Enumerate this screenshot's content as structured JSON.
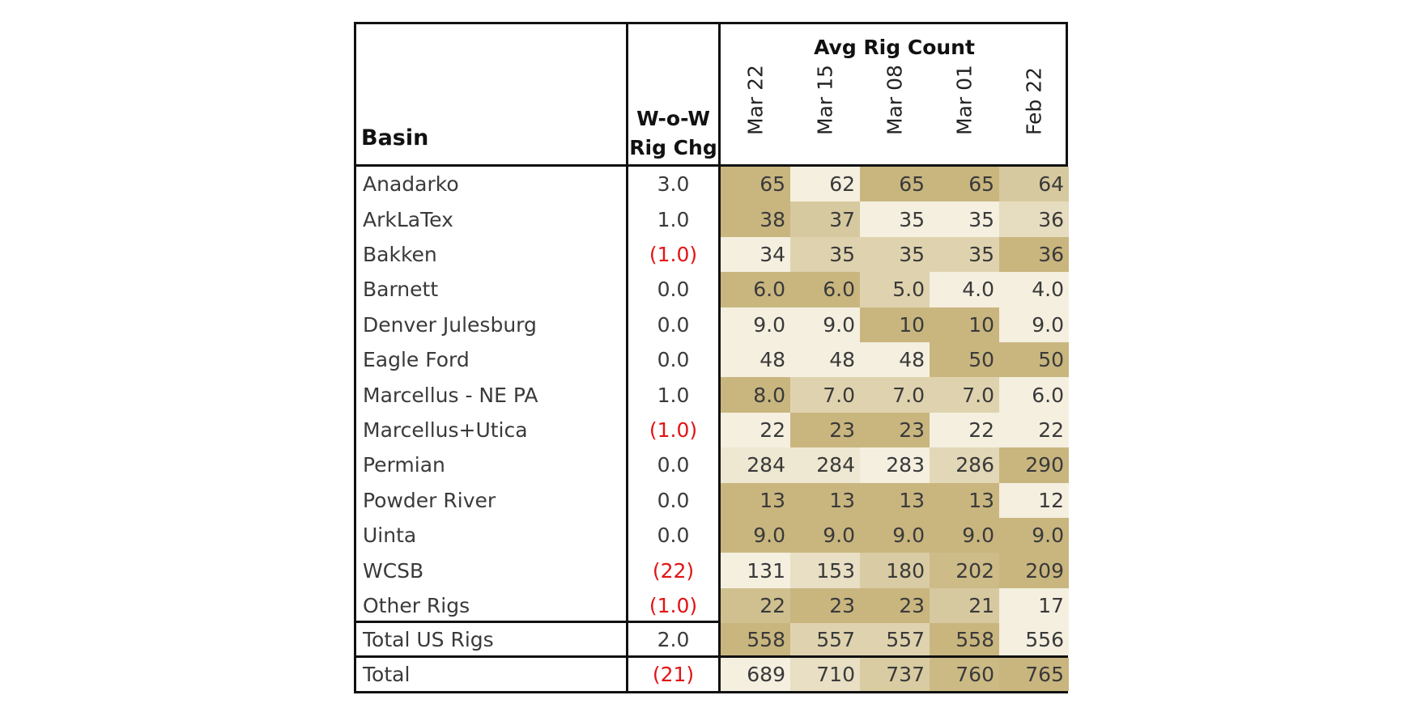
{
  "table": {
    "header": {
      "basin": "Basin",
      "chg_line1": "W-o-W",
      "chg_line2": "Rig Chg",
      "group": "Avg Rig Count",
      "dates": [
        "Mar 22",
        "Mar 15",
        "Mar 08",
        "Mar 01",
        "Feb 22"
      ]
    },
    "rows": [
      {
        "basin": "Anadarko",
        "chg": "3.0",
        "neg": false,
        "values": [
          "65",
          "62",
          "65",
          "65",
          "64"
        ]
      },
      {
        "basin": "ArkLaTex",
        "chg": "1.0",
        "neg": false,
        "values": [
          "38",
          "37",
          "35",
          "35",
          "36"
        ]
      },
      {
        "basin": "Bakken",
        "chg": "(1.0)",
        "neg": true,
        "values": [
          "34",
          "35",
          "35",
          "35",
          "36"
        ]
      },
      {
        "basin": "Barnett",
        "chg": "0.0",
        "neg": false,
        "values": [
          "6.0",
          "6.0",
          "5.0",
          "4.0",
          "4.0"
        ]
      },
      {
        "basin": "Denver Julesburg",
        "chg": "0.0",
        "neg": false,
        "values": [
          "9.0",
          "9.0",
          "10",
          "10",
          "9.0"
        ]
      },
      {
        "basin": "Eagle Ford",
        "chg": "0.0",
        "neg": false,
        "values": [
          "48",
          "48",
          "48",
          "50",
          "50"
        ]
      },
      {
        "basin": "Marcellus - NE PA",
        "chg": "1.0",
        "neg": false,
        "values": [
          "8.0",
          "7.0",
          "7.0",
          "7.0",
          "6.0"
        ]
      },
      {
        "basin": "Marcellus+Utica",
        "chg": "(1.0)",
        "neg": true,
        "values": [
          "22",
          "23",
          "23",
          "22",
          "22"
        ]
      },
      {
        "basin": "Permian",
        "chg": "0.0",
        "neg": false,
        "values": [
          "284",
          "284",
          "283",
          "286",
          "290"
        ]
      },
      {
        "basin": "Powder River",
        "chg": "0.0",
        "neg": false,
        "values": [
          "13",
          "13",
          "13",
          "13",
          "12"
        ]
      },
      {
        "basin": "Uinta",
        "chg": "0.0",
        "neg": false,
        "values": [
          "9.0",
          "9.0",
          "9.0",
          "9.0",
          "9.0"
        ]
      },
      {
        "basin": "WCSB",
        "chg": "(22)",
        "neg": true,
        "values": [
          "131",
          "153",
          "180",
          "202",
          "209"
        ]
      },
      {
        "basin": "Other Rigs",
        "chg": "(1.0)",
        "neg": true,
        "values": [
          "22",
          "23",
          "23",
          "21",
          "17"
        ]
      }
    ],
    "total_us": {
      "basin": "Total US Rigs",
      "chg": "2.0",
      "neg": false,
      "values": [
        "558",
        "557",
        "557",
        "558",
        "556"
      ]
    },
    "total": {
      "basin": "Total",
      "chg": "(21)",
      "neg": true,
      "values": [
        "689",
        "710",
        "737",
        "760",
        "765"
      ]
    }
  },
  "colors": {
    "low": "#f4efdf",
    "high": "#c9b67f",
    "negative_text": "#e21414",
    "border": "#111111"
  }
}
